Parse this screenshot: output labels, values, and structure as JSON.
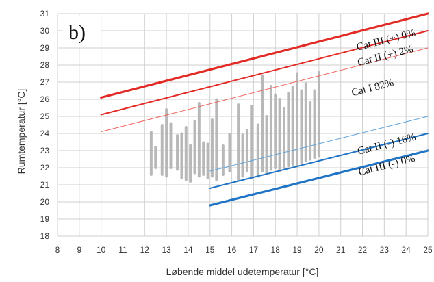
{
  "chart_data": {
    "type": "scatter",
    "title": "",
    "panel_label": "b)",
    "xlabel": "Løbende middel udetemperatur [°C]",
    "ylabel": "Rumtemperatur [°C]",
    "xlim": [
      8,
      25
    ],
    "ylim": [
      18,
      31
    ],
    "xticks": [
      8,
      9,
      10,
      11,
      12,
      13,
      14,
      15,
      16,
      17,
      18,
      19,
      20,
      21,
      22,
      23,
      24,
      25
    ],
    "yticks": [
      18,
      19,
      20,
      21,
      22,
      23,
      24,
      25,
      26,
      27,
      28,
      29,
      30,
      31
    ],
    "grid": true,
    "lines": [
      {
        "label": "Cat III (+) 0%",
        "x": [
          10,
          25
        ],
        "y": [
          26.1,
          31.0
        ],
        "color": "#e32b26",
        "width": 3.2
      },
      {
        "label": "Cat II (+) 2%",
        "x": [
          10,
          25
        ],
        "y": [
          25.1,
          30.0
        ],
        "color": "#e32b26",
        "width": 2.0
      },
      {
        "label": "",
        "x": [
          10,
          25
        ],
        "y": [
          24.1,
          29.0
        ],
        "color": "#f0645c",
        "width": 1.0
      },
      {
        "label": "",
        "x": [
          15,
          25
        ],
        "y": [
          21.8,
          25.0
        ],
        "color": "#5ba2dc",
        "width": 1.0
      },
      {
        "label": "Cat II (-) 16%",
        "x": [
          15,
          25
        ],
        "y": [
          20.8,
          24.0
        ],
        "color": "#1f74c6",
        "width": 2.0
      },
      {
        "label": "Cat III (-) 0%",
        "x": [
          15,
          25
        ],
        "y": [
          19.8,
          23.0
        ],
        "color": "#1f74c6",
        "width": 3.2
      }
    ],
    "zone_labels": [
      {
        "label": "Cat I 82%",
        "x": 22.5,
        "y": 26.5
      }
    ],
    "scatter": {
      "color": "#b8b8b8",
      "columns": [
        {
          "x": 12.3,
          "y": [
            21.6,
            24.1
          ]
        },
        {
          "x": 12.5,
          "y": [
            22.0,
            23.2
          ]
        },
        {
          "x": 12.8,
          "y": [
            21.6,
            24.5
          ]
        },
        {
          "x": 13.0,
          "y": [
            21.5,
            25.4
          ]
        },
        {
          "x": 13.2,
          "y": [
            22.0,
            24.6
          ]
        },
        {
          "x": 13.5,
          "y": [
            21.9,
            23.9
          ]
        },
        {
          "x": 13.7,
          "y": [
            21.4,
            24.0
          ]
        },
        {
          "x": 13.9,
          "y": [
            21.3,
            24.4
          ]
        },
        {
          "x": 14.1,
          "y": [
            21.2,
            23.3
          ]
        },
        {
          "x": 14.3,
          "y": [
            21.7,
            24.7
          ]
        },
        {
          "x": 14.5,
          "y": [
            21.5,
            25.8
          ]
        },
        {
          "x": 14.7,
          "y": [
            21.6,
            23.5
          ]
        },
        {
          "x": 14.9,
          "y": [
            21.4,
            23.4
          ]
        },
        {
          "x": 15.1,
          "y": [
            21.5,
            24.8
          ]
        },
        {
          "x": 15.3,
          "y": [
            21.3,
            26.0
          ]
        },
        {
          "x": 15.6,
          "y": [
            21.6,
            23.3
          ]
        },
        {
          "x": 15.9,
          "y": [
            21.8,
            24.0
          ]
        },
        {
          "x": 16.3,
          "y": [
            21.3,
            25.7
          ]
        },
        {
          "x": 16.5,
          "y": [
            21.5,
            23.9
          ]
        },
        {
          "x": 16.7,
          "y": [
            21.8,
            24.2
          ]
        },
        {
          "x": 16.9,
          "y": [
            21.4,
            25.6
          ]
        },
        {
          "x": 17.2,
          "y": [
            21.5,
            24.5
          ]
        },
        {
          "x": 17.4,
          "y": [
            21.8,
            27.4
          ]
        },
        {
          "x": 17.6,
          "y": [
            21.7,
            25.0
          ]
        },
        {
          "x": 17.8,
          "y": [
            21.9,
            26.8
          ]
        },
        {
          "x": 18.0,
          "y": [
            22.0,
            26.3
          ]
        },
        {
          "x": 18.2,
          "y": [
            21.8,
            26.0
          ]
        },
        {
          "x": 18.4,
          "y": [
            22.0,
            25.5
          ]
        },
        {
          "x": 18.6,
          "y": [
            22.1,
            26.4
          ]
        },
        {
          "x": 18.8,
          "y": [
            22.2,
            26.7
          ]
        },
        {
          "x": 19.0,
          "y": [
            22.1,
            27.5
          ]
        },
        {
          "x": 19.2,
          "y": [
            22.3,
            26.5
          ]
        },
        {
          "x": 19.4,
          "y": [
            22.4,
            26.9
          ]
        },
        {
          "x": 19.6,
          "y": [
            22.5,
            25.8
          ]
        },
        {
          "x": 19.8,
          "y": [
            22.6,
            26.5
          ]
        },
        {
          "x": 20.0,
          "y": [
            22.7,
            27.6
          ]
        }
      ]
    }
  }
}
